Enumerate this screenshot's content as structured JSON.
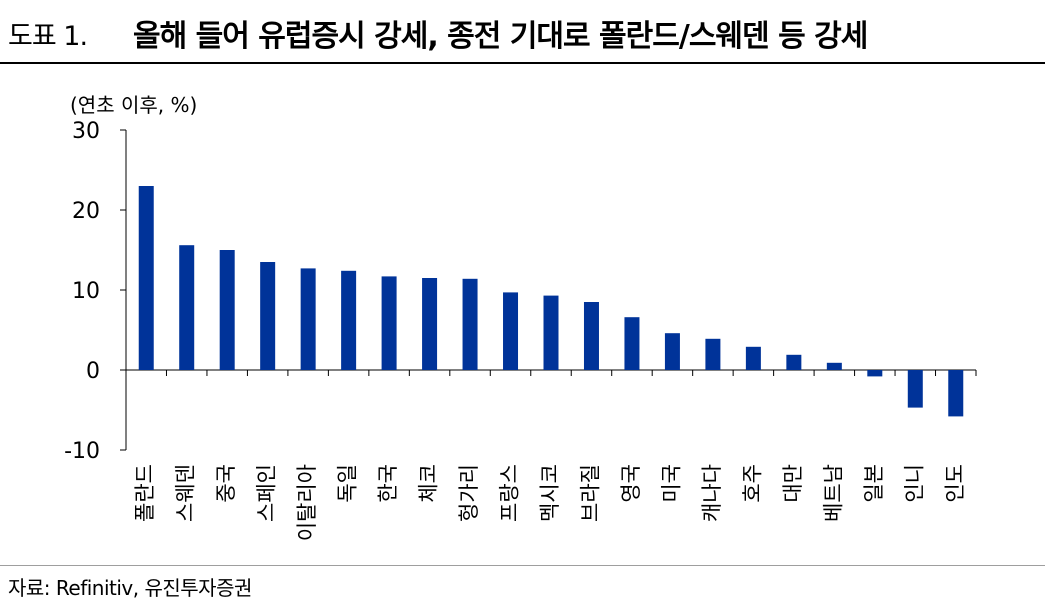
{
  "header": {
    "figure_label": "도표 1.",
    "title": "올해 들어 유럽증시 강세, 종전 기대로 폴란드/스웨덴 등 강세"
  },
  "footer": {
    "source": "자료: Refinitiv, 유진투자증권"
  },
  "colors": {
    "bar": "#003399",
    "axis": "#000000"
  },
  "chart_data": {
    "type": "bar",
    "title": "",
    "xlabel": "",
    "ylabel": "(연초 이후, %)",
    "ylim": [
      -10,
      30
    ],
    "yticks": [
      -10,
      0,
      10,
      20,
      30
    ],
    "grid": false,
    "categories": [
      "폴란드",
      "스웨덴",
      "중국",
      "스페인",
      "이탈리아",
      "독일",
      "한국",
      "체코",
      "헝가리",
      "프랑스",
      "멕시코",
      "브라질",
      "영국",
      "미국",
      "캐나다",
      "호주",
      "대만",
      "베트남",
      "일본",
      "인니",
      "인도"
    ],
    "values": [
      23.0,
      15.6,
      15.0,
      13.5,
      12.7,
      12.4,
      11.7,
      11.5,
      11.4,
      9.7,
      9.3,
      8.5,
      6.6,
      4.6,
      3.9,
      2.9,
      1.9,
      0.9,
      -0.8,
      -4.7,
      -5.8
    ]
  }
}
